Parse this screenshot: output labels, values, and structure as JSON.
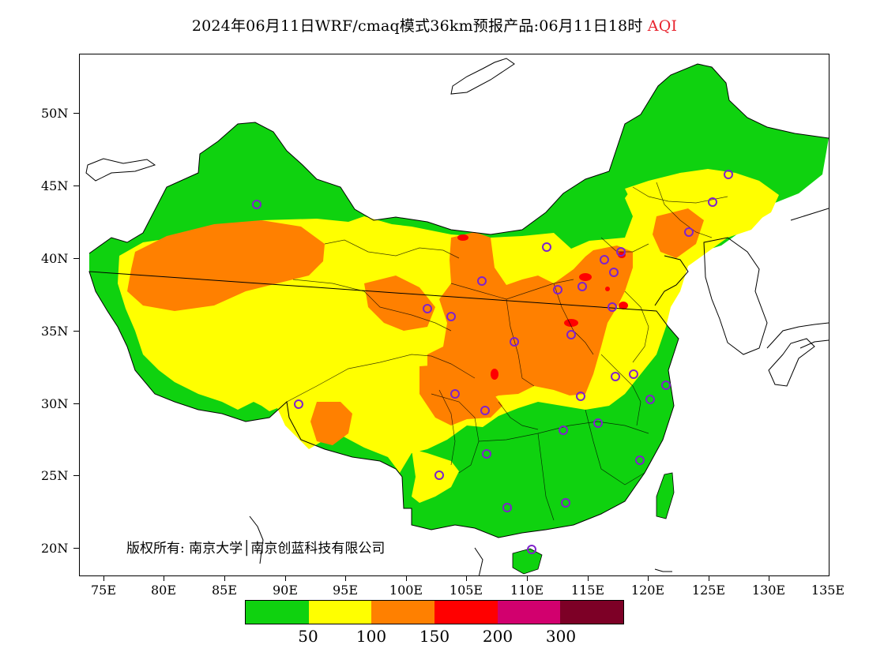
{
  "title": {
    "main": "2024年06月11日WRF/cmaq模式36km预报产品:06月11日18时",
    "variable": "AQI"
  },
  "axes": {
    "y_ticks": [
      "50N",
      "45N",
      "40N",
      "35N",
      "30N",
      "25N",
      "20N"
    ],
    "x_ticks": [
      "75E",
      "80E",
      "85E",
      "90E",
      "95E",
      "100E",
      "105E",
      "110E",
      "115E",
      "120E",
      "125E",
      "130E",
      "135E"
    ]
  },
  "copyright": "版权所有: 南京大学│南京创蓝科技有限公司",
  "legend": {
    "colors": [
      "#0fd20f",
      "#ffff00",
      "#ff8000",
      "#ff0000",
      "#d2006e",
      "#7d0026"
    ],
    "labels": [
      "50",
      "100",
      "150",
      "200",
      "300"
    ]
  },
  "palette": {
    "good": "#0fd20f",
    "moderate": "#ffff00",
    "sensitive": "#ff8000",
    "unhealthy": "#ff0000",
    "station_marker": "#7f22cc"
  }
}
